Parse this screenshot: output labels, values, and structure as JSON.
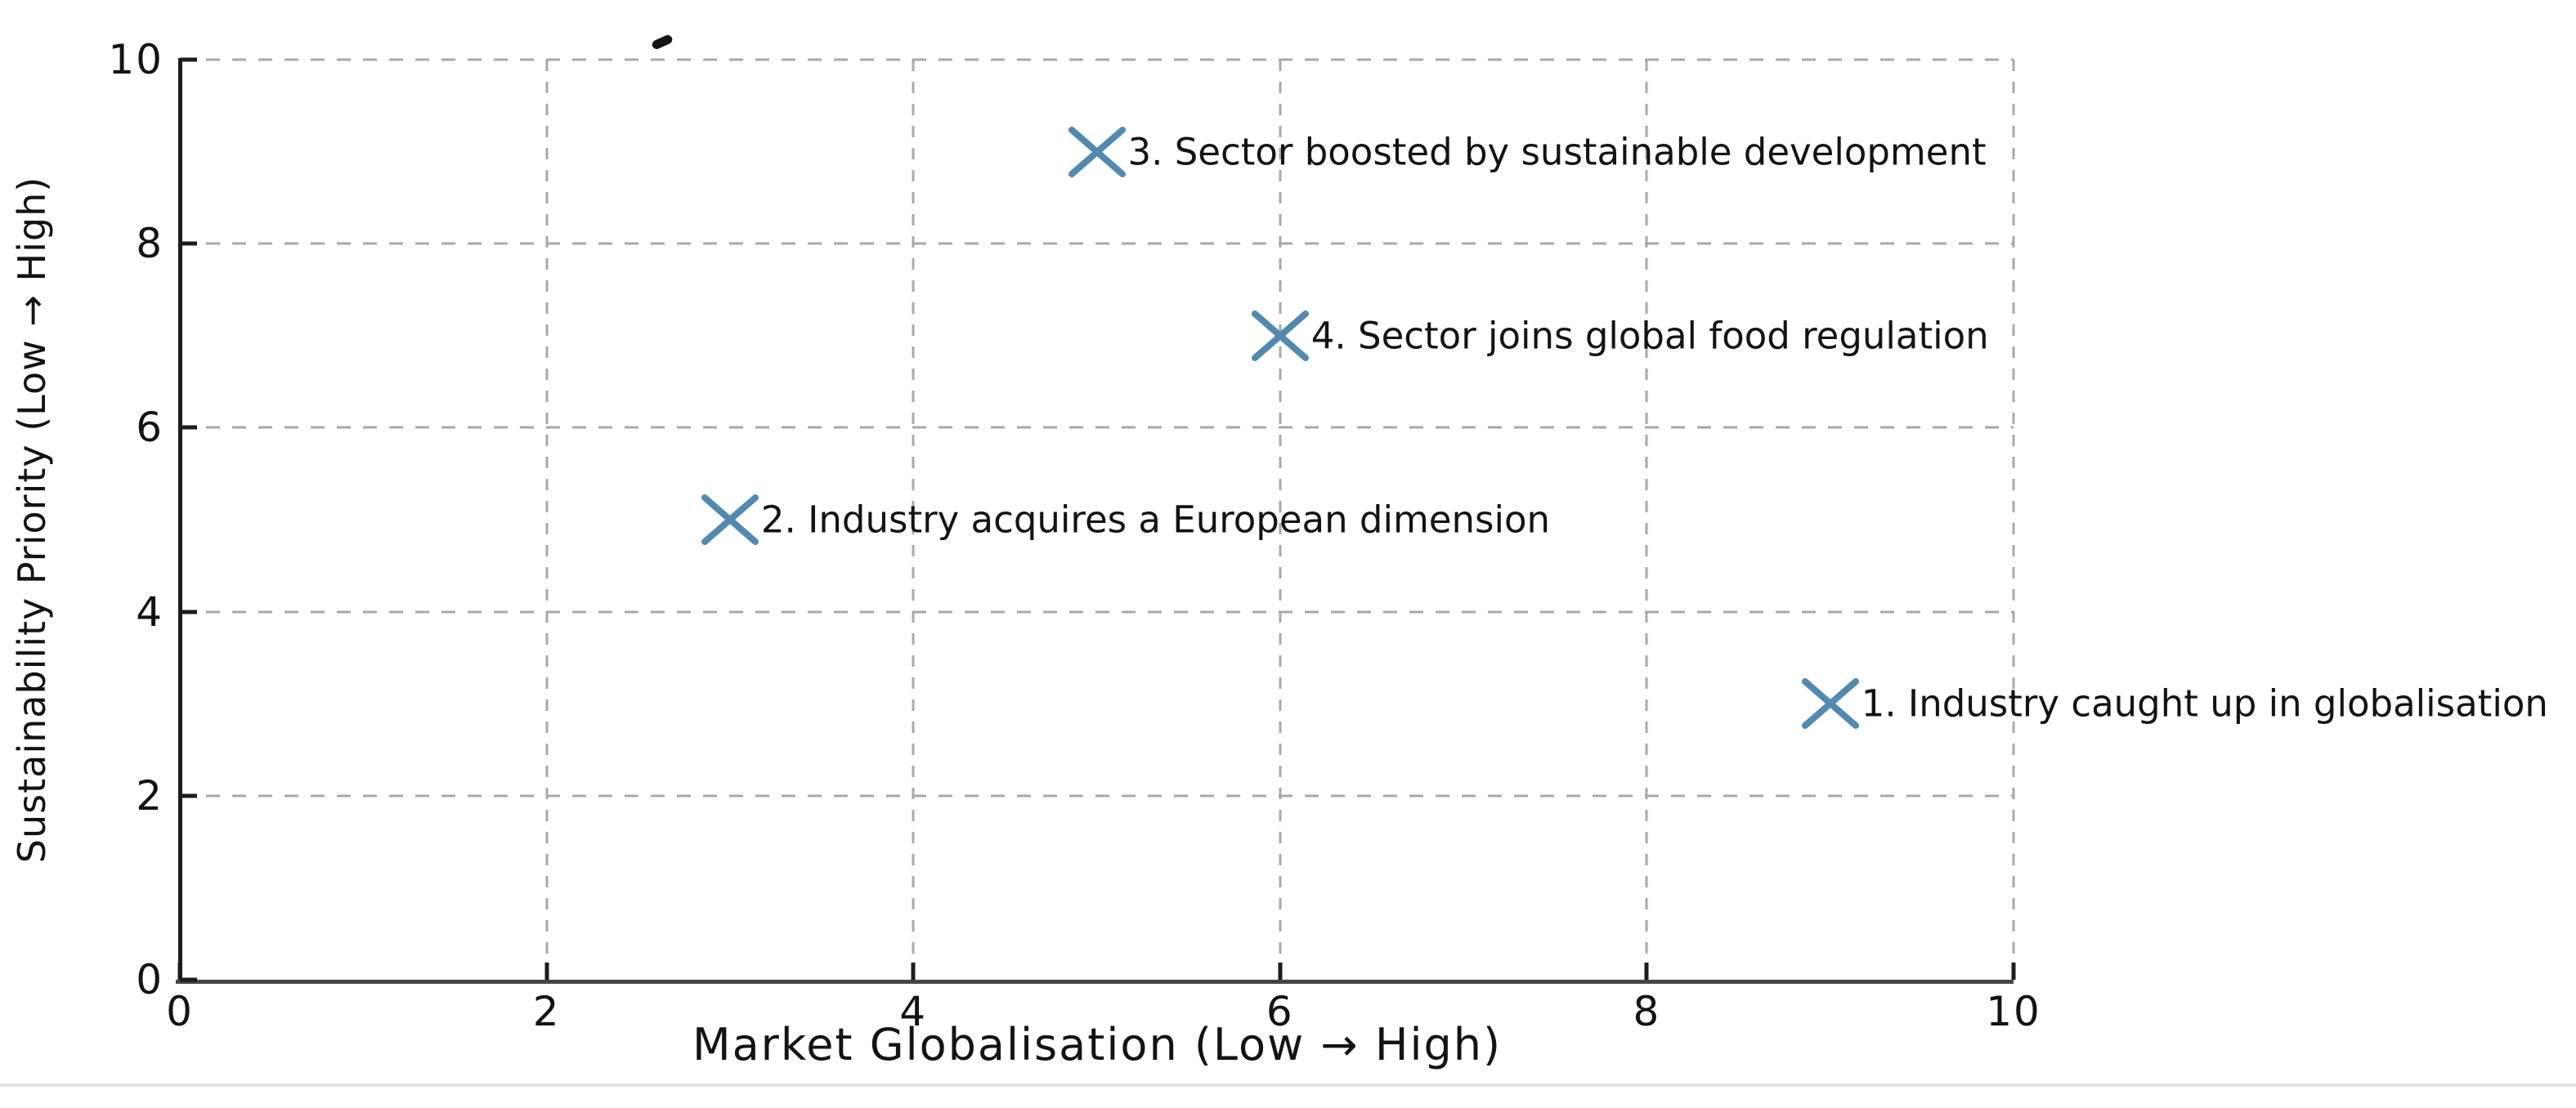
{
  "chart_data": {
    "type": "scatter",
    "title": "",
    "xlabel": "Market Globalisation (Low → High)",
    "ylabel": "Sustainability Priority (Low → High)",
    "xlim": [
      0,
      10
    ],
    "ylim": [
      0,
      10
    ],
    "xticks": [
      0,
      2,
      4,
      6,
      8,
      10
    ],
    "yticks": [
      0,
      2,
      4,
      6,
      8,
      10
    ],
    "grid": "dashed, both axes, light gray",
    "legend": "none",
    "marker": "x",
    "points": [
      {
        "x": 9,
        "y": 3,
        "label": "1. Industry caught up in globalisation"
      },
      {
        "x": 3,
        "y": 5,
        "label": "2. Industry acquires a European dimension"
      },
      {
        "x": 5,
        "y": 9,
        "label": "3. Sector boosted by sustainable development"
      },
      {
        "x": 6,
        "y": 7,
        "label": "4. Sector joins global food regulation"
      }
    ]
  },
  "colors": {
    "marker": "#5189b0",
    "grid": "#a9a9a9",
    "spine": "#1c1c1c",
    "spine_bottom": "#454545",
    "text": "#131313",
    "separator": "#e2e2e2",
    "background": "#ffffff"
  }
}
